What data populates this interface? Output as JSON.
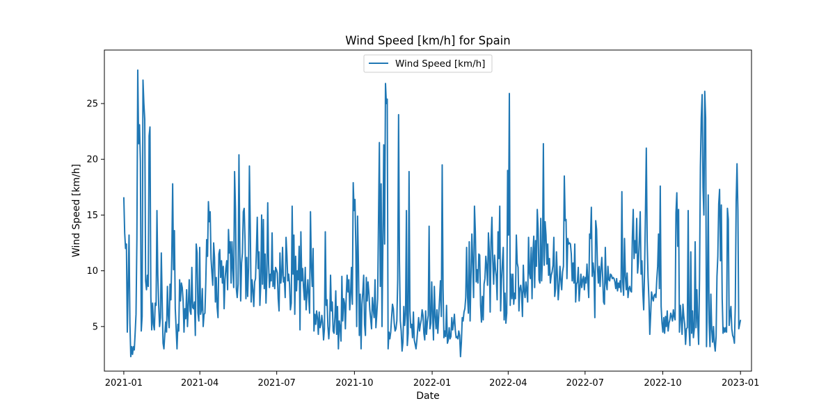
{
  "chart_data": {
    "type": "line",
    "title": "Wind Speed [km/h] for Spain",
    "xlabel": "Date",
    "ylabel": "Wind Speed [km/h]",
    "x_ticks": [
      "2021-01",
      "2021-04",
      "2021-07",
      "2021-10",
      "2022-01",
      "2022-04",
      "2022-07",
      "2022-10",
      "2023-01"
    ],
    "y_ticks": [
      5,
      10,
      15,
      20,
      25
    ],
    "xlim": [
      "2020-12-09",
      "2023-01-14"
    ],
    "ylim": [
      1.0,
      29.8
    ],
    "legend": {
      "position": "upper center",
      "entries": [
        "Wind Speed [km/h]"
      ]
    },
    "series_color": "#1f77b4",
    "grid": false,
    "series": [
      {
        "name": "Wind Speed [km/h]",
        "x_start": "2021-01-01",
        "x_end": "2023-01-01",
        "frequency": "daily",
        "values": [
          16.6,
          13.4,
          12.0,
          12.4,
          4.5,
          8.7,
          13.2,
          5.3,
          2.3,
          3.2,
          2.5,
          3.2,
          2.9,
          4.4,
          6.1,
          12.8,
          28.0,
          21.4,
          23.1,
          19.8,
          4.6,
          5.9,
          27.1,
          25.0,
          23.6,
          9.1,
          8.3,
          9.6,
          8.6,
          22.1,
          22.9,
          7.7,
          4.7,
          7.1,
          5.2,
          4.7,
          7.1,
          6.9,
          15.4,
          9.6,
          6.9,
          5.0,
          5.8,
          11.6,
          7.2,
          3.5,
          3.0,
          4.3,
          5.4,
          4.5,
          8.6,
          6.0,
          4.9,
          8.8,
          7.4,
          11.3,
          17.8,
          10.1,
          13.6,
          6.6,
          4.8,
          3.0,
          5.2,
          4.6,
          9.2,
          7.3,
          8.9,
          8.5,
          7.3,
          4.5,
          6.6,
          5.7,
          8.3,
          5.0,
          6.9,
          9.2,
          6.4,
          6.1,
          10.3,
          6.7,
          6.6,
          7.2,
          4.2,
          12.4,
          11.6,
          6.2,
          5.5,
          12.1,
          6.1,
          6.5,
          8.4,
          5.0,
          6.1,
          6.2,
          9.0,
          12.8,
          11.3,
          16.2,
          14.4,
          15.3,
          11.1,
          9.8,
          8.7,
          12.5,
          11.2,
          7.2,
          9.4,
          6.7,
          5.8,
          11.5,
          11.9,
          9.4,
          10.9,
          8.9,
          10.4,
          6.6,
          9.2,
          10.2,
          10.9,
          8.3,
          13.7,
          11.6,
          12.6,
          8.9,
          12.6,
          10.2,
          8.5,
          18.9,
          15.6,
          8.4,
          7.6,
          8.8,
          20.4,
          12.1,
          7.3,
          10.7,
          11.6,
          15.3,
          15.6,
          12.7,
          7.5,
          11.2,
          7.7,
          10.3,
          19.4,
          13.8,
          7.2,
          9.2,
          8.3,
          6.8,
          9.0,
          9.3,
          11.8,
          14.8,
          10.2,
          11.7,
          6.9,
          8.7,
          15.0,
          8.8,
          14.6,
          8.4,
          11.5,
          7.1,
          9.6,
          16.1,
          10.6,
          8.5,
          9.7,
          9.1,
          13.4,
          8.6,
          10.0,
          8.4,
          10.3,
          10.1,
          9.8,
          7.5,
          6.4,
          11.6,
          8.9,
          9.6,
          12.1,
          9.0,
          9.4,
          7.6,
          13.0,
          11.4,
          9.1,
          9.7,
          8.8,
          6.5,
          7.1,
          15.8,
          9.7,
          13.2,
          6.1,
          11.3,
          8.2,
          10.0,
          9.2,
          12.2,
          4.7,
          13.5,
          9.1,
          10.2,
          8.5,
          7.4,
          10.3,
          6.5,
          7.9,
          9.2,
          7.6,
          6.2,
          15.3,
          10.4,
          8.6,
          12.0,
          4.6,
          6.1,
          5.2,
          6.4,
          5.8,
          4.3,
          6.3,
          4.9,
          5.2,
          6.0,
          5.3,
          3.8,
          4.8,
          13.5,
          6.9,
          7.4,
          5.0,
          3.9,
          5.1,
          9.6,
          6.4,
          7.2,
          4.6,
          4.4,
          5.8,
          8.2,
          4.3,
          6.8,
          3.0,
          5.5,
          4.9,
          3.7,
          9.5,
          5.5,
          7.5,
          7.1,
          4.8,
          7.8,
          9.6,
          8.1,
          9.2,
          6.5,
          7.9,
          10.3,
          7.0,
          17.9,
          15.4,
          16.4,
          12.1,
          5.0,
          14.9,
          10.5,
          4.2,
          7.9,
          3.0,
          7.0,
          8.1,
          9.6,
          5.2,
          4.2,
          9.4,
          7.3,
          9.0,
          8.0,
          6.5,
          5.7,
          4.8,
          7.6,
          6.6,
          5.8,
          9.2,
          4.9,
          6.1,
          7.5,
          14.6,
          21.5,
          8.6,
          17.8,
          5.0,
          12.4,
          21.3,
          12.4,
          26.8,
          25.0,
          25.4,
          3.0,
          4.5,
          3.9,
          4.5,
          5.8,
          7.0,
          6.6,
          5.3,
          4.6,
          4.8,
          5.5,
          9.2,
          24.0,
          10.9,
          5.5,
          4.6,
          2.8,
          3.6,
          6.8,
          5.1,
          6.1,
          15.4,
          3.3,
          4.4,
          18.9,
          6.4,
          4.9,
          5.2,
          4.0,
          6.3,
          3.8,
          3.4,
          3.0,
          3.8,
          4.8,
          5.8,
          4.6,
          5.2,
          5.6,
          6.5,
          6.0,
          4.4,
          3.8,
          6.4,
          4.3,
          5.4,
          6.0,
          14.0,
          4.8,
          5.3,
          9.0,
          6.1,
          3.8,
          8.6,
          5.9,
          4.8,
          6.5,
          4.4,
          5.9,
          7.5,
          9.1,
          5.9,
          19.5,
          8.4,
          4.0,
          4.6,
          4.1,
          6.9,
          3.5,
          3.8,
          4.9,
          3.9,
          4.1,
          5.8,
          4.7,
          5.3,
          6.1,
          4.7,
          4.0,
          4.1,
          3.9,
          4.6,
          4.2,
          2.3,
          3.6,
          5.8,
          5.5,
          6.3,
          6.6,
          7.6,
          12.1,
          7.8,
          6.2,
          12.6,
          5.5,
          9.5,
          13.3,
          10.7,
          7.6,
          15.8,
          13.5,
          9.0,
          10.1,
          8.9,
          11.5,
          11.4,
          6.9,
          5.4,
          7.7,
          5.6,
          8.8,
          9.3,
          11.3,
          10.4,
          8.7,
          13.4,
          11.7,
          6.3,
          12.6,
          14.8,
          10.9,
          8.8,
          11.4,
          10.2,
          9.5,
          7.4,
          13.5,
          11.1,
          15.8,
          6.4,
          9.2,
          10.7,
          12.1,
          5.6,
          8.0,
          5.3,
          6.2,
          19.0,
          13.2,
          25.9,
          6.9,
          9.7,
          7.5,
          9.7,
          7.0,
          8.0,
          7.5,
          13.2,
          10.7,
          10.3,
          6.4,
          8.4,
          8.7,
          8.0,
          5.9,
          10.5,
          8.2,
          7.6,
          9.0,
          8.2,
          7.2,
          13.0,
          9.8,
          9.3,
          12.1,
          7.5,
          11.5,
          13.1,
          8.5,
          12.7,
          10.4,
          15.5,
          13.7,
          9.2,
          8.9,
          14.7,
          9.1,
          11.3,
          21.4,
          10.5,
          14.4,
          13.2,
          10.6,
          12.4,
          9.6,
          11.1,
          8.9,
          9.6,
          9.9,
          10.5,
          13.0,
          7.7,
          8.4,
          11.7,
          9.6,
          7.4,
          8.6,
          10.4,
          9.2,
          8.3,
          9.9,
          10.4,
          18.5,
          14.5,
          14.6,
          9.3,
          12.9,
          12.4,
          12.5,
          12.4,
          11.5,
          9.1,
          10.7,
          8.9,
          12.4,
          7.2,
          8.8,
          9.0,
          10.3,
          7.3,
          8.5,
          9.7,
          8.5,
          9.2,
          9.5,
          8.3,
          9.4,
          8.9,
          10.6,
          9.0,
          7.6,
          13.3,
          12.9,
          15.7,
          9.5,
          10.7,
          9.8,
          5.8,
          14.5,
          13.7,
          10.4,
          8.9,
          10.4,
          8.6,
          10.2,
          11.2,
          9.4,
          7.2,
          7.0,
          12.1,
          8.9,
          8.3,
          10.4,
          9.2,
          9.1,
          9.7,
          9.6,
          9.3,
          9.4,
          9.3,
          9.0,
          8.4,
          9.3,
          8.2,
          8.9,
          8.5,
          9.1,
          8.1,
          17.1,
          9.0,
          7.8,
          12.9,
          9.5,
          8.3,
          9.8,
          7.6,
          8.4,
          8.6,
          8.2,
          8.1,
          13.0,
          15.5,
          11.1,
          12.7,
          11.6,
          14.7,
          9.8,
          10.8,
          12.8,
          15.3,
          9.7,
          10.9,
          8.1,
          6.5,
          10.0,
          15.1,
          21.0,
          12.6,
          9.4,
          7.5,
          4.3,
          6.1,
          8.1,
          7.6,
          7.3,
          7.8,
          7.9,
          7.6,
          9.2,
          10.4,
          13.3,
          8.4,
          17.6,
          6.8,
          5.3,
          4.5,
          5.8,
          4.4,
          5.9,
          5.0,
          6.4,
          4.6,
          5.3,
          5.6,
          6.2,
          5.9,
          5.5,
          6.5,
          5.9,
          5.6,
          15.2,
          17.0,
          12.2,
          15.5,
          4.5,
          6.9,
          5.7,
          4.3,
          7.0,
          5.9,
          5.2,
          3.4,
          4.8,
          4.9,
          15.4,
          4.9,
          3.3,
          11.7,
          4.4,
          6.4,
          4.0,
          4.8,
          12.6,
          4.9,
          8.3,
          5.3,
          3.4,
          9.3,
          19.3,
          23.7,
          25.8,
          17.5,
          15.0,
          26.1,
          23.7,
          3.2,
          7.4,
          16.8,
          5.4,
          3.2,
          7.9,
          4.7,
          3.6,
          5.0,
          3.5,
          2.8,
          4.1,
          9.5,
          11.3,
          16.0,
          17.3,
          10.9,
          15.9,
          7.5,
          4.4,
          4.9,
          4.5,
          4.9,
          4.5,
          15.6,
          14.6,
          5.1,
          6.1,
          6.8,
          4.8,
          4.2,
          4.0,
          3.5,
          6.8,
          16.2,
          19.6,
          15.4,
          4.8,
          5.2,
          5.6
        ]
      }
    ]
  }
}
